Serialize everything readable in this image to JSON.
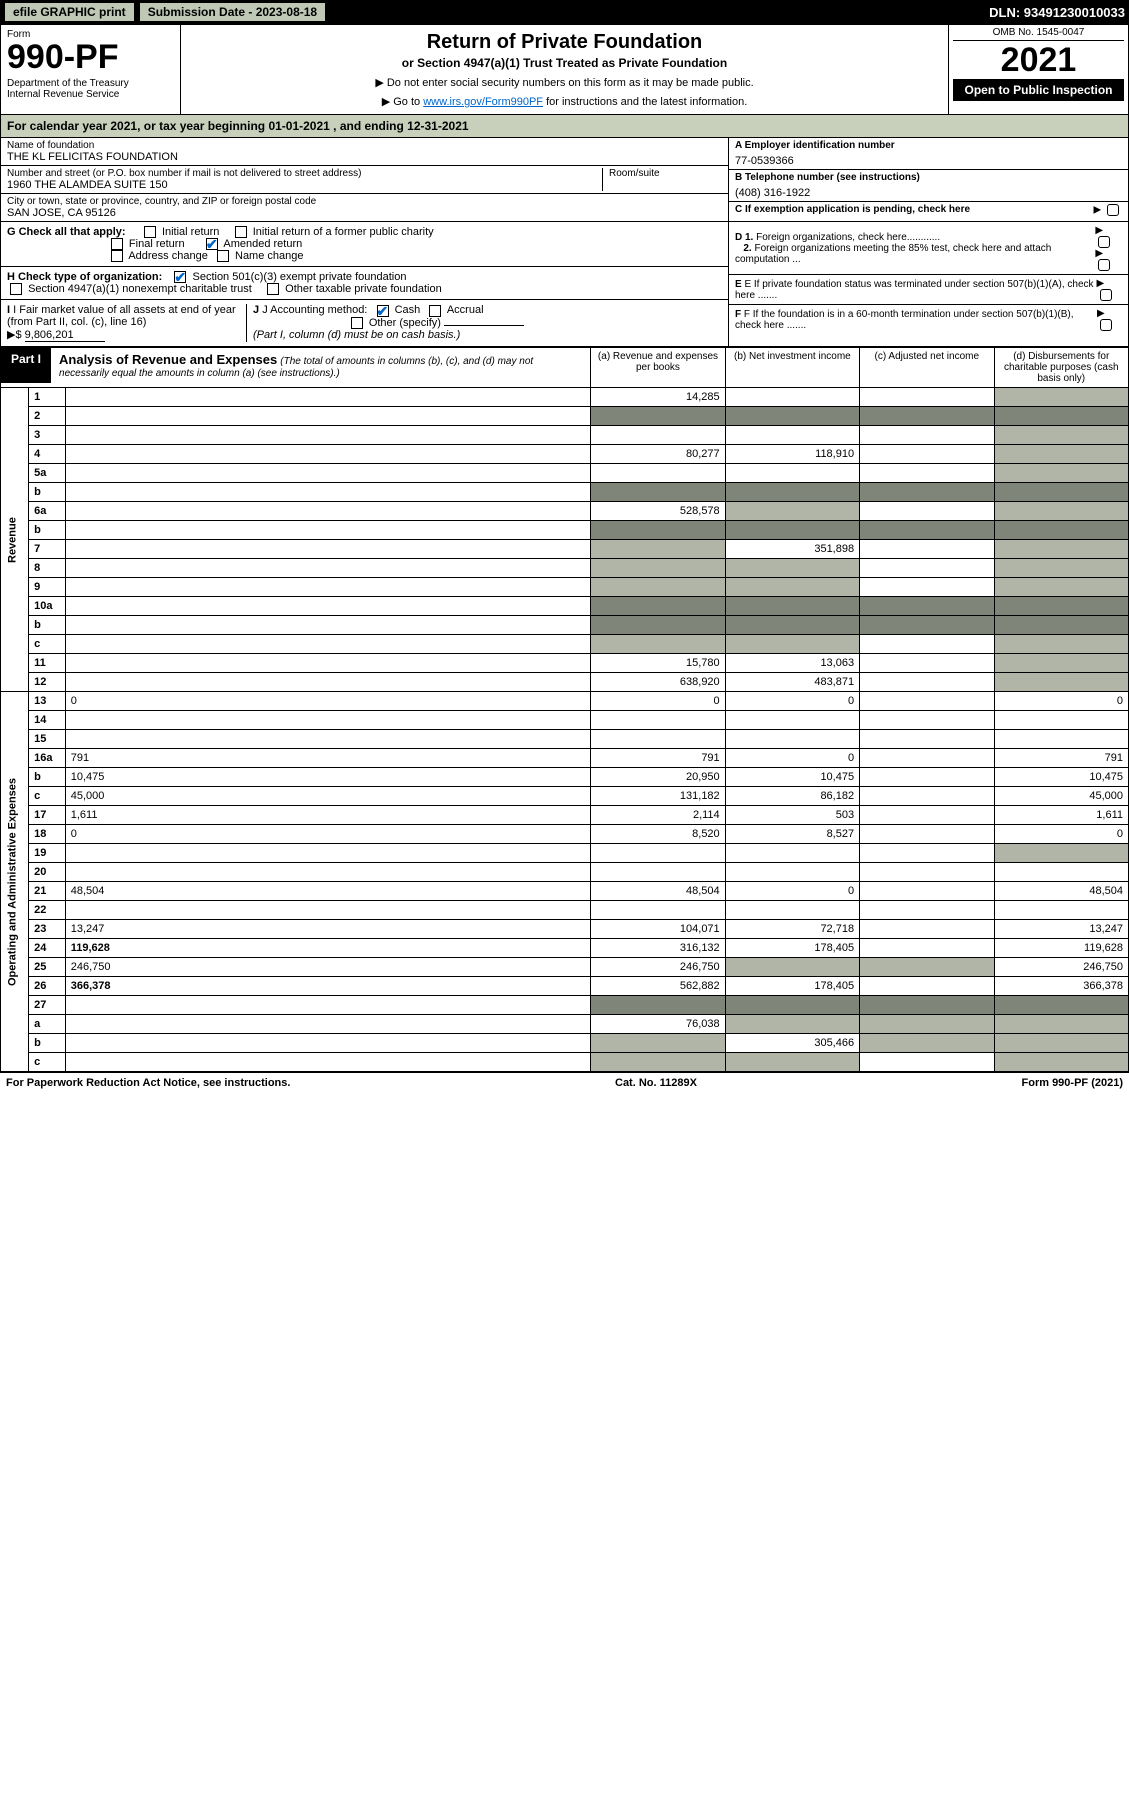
{
  "topbar": {
    "efile": "efile GRAPHIC print",
    "submission": "Submission Date - 2023-08-18",
    "dln": "DLN: 93491230010033"
  },
  "header": {
    "form_label": "Form",
    "form_num": "990-PF",
    "dept": "Department of the Treasury\nInternal Revenue Service",
    "title": "Return of Private Foundation",
    "subtitle": "or Section 4947(a)(1) Trust Treated as Private Foundation",
    "note1": "▶ Do not enter social security numbers on this form as it may be made public.",
    "note2_pre": "▶ Go to ",
    "note2_link": "www.irs.gov/Form990PF",
    "note2_post": " for instructions and the latest information.",
    "omb": "OMB No. 1545-0047",
    "year": "2021",
    "inspect": "Open to Public Inspection"
  },
  "calendar": "For calendar year 2021, or tax year beginning 01-01-2021                              , and ending 12-31-2021",
  "entity": {
    "name_label": "Name of foundation",
    "name": "THE KL FELICITAS FOUNDATION",
    "addr_label": "Number and street (or P.O. box number if mail is not delivered to street address)",
    "addr": "1960 THE ALAMDEA SUITE 150",
    "room_label": "Room/suite",
    "city_label": "City or town, state or province, country, and ZIP or foreign postal code",
    "city": "SAN JOSE, CA  95126",
    "a_label": "A Employer identification number",
    "a_val": "77-0539366",
    "b_label": "B Telephone number (see instructions)",
    "b_val": "(408) 316-1922",
    "c_label": "C If exemption application is pending, check here"
  },
  "checks": {
    "g_label": "G Check all that apply:",
    "g_opts": [
      "Initial return",
      "Initial return of a former public charity",
      "Final return",
      "Amended return",
      "Address change",
      "Name change"
    ],
    "h_label": "H Check type of organization:",
    "h_opts": [
      "Section 501(c)(3) exempt private foundation",
      "Section 4947(a)(1) nonexempt charitable trust",
      "Other taxable private foundation"
    ],
    "i_label": "I Fair market value of all assets at end of year (from Part II, col. (c), line 16)",
    "i_val": "9,806,201",
    "j_label": "J Accounting method:",
    "j_opts": [
      "Cash",
      "Accrual",
      "Other (specify)"
    ],
    "j_note": "(Part I, column (d) must be on cash basis.)",
    "d1": "D 1. Foreign organizations, check here............",
    "d2": "2. Foreign organizations meeting the 85% test, check here and attach computation ...",
    "e": "E If private foundation status was terminated under section 507(b)(1)(A), check here .......",
    "f": "F If the foundation is in a 60-month termination under section 507(b)(1)(B), check here ......."
  },
  "part1": {
    "label": "Part I",
    "title": "Analysis of Revenue and Expenses",
    "note": "(The total of amounts in columns (b), (c), and (d) may not necessarily equal the amounts in column (a) (see instructions).)",
    "cols": [
      "(a)   Revenue and expenses per books",
      "(b)   Net investment income",
      "(c)   Adjusted net income",
      "(d)   Disbursements for charitable purposes (cash basis only)"
    ]
  },
  "sections": {
    "revenue": "Revenue",
    "expenses": "Operating and Administrative Expenses"
  },
  "lines": [
    {
      "n": "1",
      "d": "",
      "a": "14,285",
      "b": "",
      "c": "",
      "dGray": true
    },
    {
      "n": "2",
      "d": "",
      "a": "",
      "b": "",
      "c": "",
      "darkA": true,
      "darkB": true,
      "darkC": true,
      "darkD": true
    },
    {
      "n": "3",
      "d": "",
      "a": "",
      "b": "",
      "c": "",
      "dGray": true
    },
    {
      "n": "4",
      "d": "",
      "a": "80,277",
      "b": "118,910",
      "c": "",
      "dGray": true
    },
    {
      "n": "5a",
      "d": "",
      "a": "",
      "b": "",
      "c": "",
      "dGray": true
    },
    {
      "n": "b",
      "d": "",
      "a": "",
      "b": "",
      "c": "",
      "darkA": true,
      "darkB": true,
      "darkC": true,
      "darkD": true
    },
    {
      "n": "6a",
      "d": "",
      "a": "528,578",
      "b": "",
      "c": "",
      "bGray": true,
      "dGray": true
    },
    {
      "n": "b",
      "d": "",
      "a": "",
      "b": "",
      "c": "",
      "darkA": true,
      "darkB": true,
      "darkC": true,
      "darkD": true
    },
    {
      "n": "7",
      "d": "",
      "a": "",
      "b": "351,898",
      "c": "",
      "aGray": true,
      "dGray": true
    },
    {
      "n": "8",
      "d": "",
      "a": "",
      "b": "",
      "c": "",
      "aGray": true,
      "bGray": true,
      "dGray": true
    },
    {
      "n": "9",
      "d": "",
      "a": "",
      "b": "",
      "c": "",
      "aGray": true,
      "bGray": true,
      "dGray": true
    },
    {
      "n": "10a",
      "d": "",
      "a": "",
      "b": "",
      "c": "",
      "darkA": true,
      "darkB": true,
      "darkC": true,
      "darkD": true
    },
    {
      "n": "b",
      "d": "",
      "a": "",
      "b": "",
      "c": "",
      "darkA": true,
      "darkB": true,
      "darkC": true,
      "darkD": true
    },
    {
      "n": "c",
      "d": "",
      "a": "",
      "b": "",
      "c": "",
      "aGray": true,
      "bGray": true,
      "dGray": true
    },
    {
      "n": "11",
      "d": "",
      "a": "15,780",
      "b": "13,063",
      "c": "",
      "dGray": true
    },
    {
      "n": "12",
      "d": "",
      "a": "638,920",
      "b": "483,871",
      "c": "",
      "bold": true,
      "dGray": true
    }
  ],
  "exp_lines": [
    {
      "n": "13",
      "d": "0",
      "a": "0",
      "b": "0",
      "c": ""
    },
    {
      "n": "14",
      "d": "",
      "a": "",
      "b": "",
      "c": ""
    },
    {
      "n": "15",
      "d": "",
      "a": "",
      "b": "",
      "c": ""
    },
    {
      "n": "16a",
      "d": "791",
      "a": "791",
      "b": "0",
      "c": ""
    },
    {
      "n": "b",
      "d": "10,475",
      "a": "20,950",
      "b": "10,475",
      "c": ""
    },
    {
      "n": "c",
      "d": "45,000",
      "a": "131,182",
      "b": "86,182",
      "c": ""
    },
    {
      "n": "17",
      "d": "1,611",
      "a": "2,114",
      "b": "503",
      "c": ""
    },
    {
      "n": "18",
      "d": "0",
      "a": "8,520",
      "b": "8,527",
      "c": ""
    },
    {
      "n": "19",
      "d": "",
      "a": "",
      "b": "",
      "c": "",
      "dGray": true
    },
    {
      "n": "20",
      "d": "",
      "a": "",
      "b": "",
      "c": ""
    },
    {
      "n": "21",
      "d": "48,504",
      "a": "48,504",
      "b": "0",
      "c": ""
    },
    {
      "n": "22",
      "d": "",
      "a": "",
      "b": "",
      "c": ""
    },
    {
      "n": "23",
      "d": "13,247",
      "a": "104,071",
      "b": "72,718",
      "c": ""
    },
    {
      "n": "24",
      "d": "119,628",
      "a": "316,132",
      "b": "178,405",
      "c": "",
      "bold": true
    },
    {
      "n": "25",
      "d": "246,750",
      "a": "246,750",
      "b": "",
      "c": "",
      "bGray": true,
      "cGray": true
    },
    {
      "n": "26",
      "d": "366,378",
      "a": "562,882",
      "b": "178,405",
      "c": "",
      "bold": true
    }
  ],
  "bottom_lines": [
    {
      "n": "27",
      "d": "",
      "a": "",
      "b": "",
      "c": "",
      "darkA": true,
      "darkB": true,
      "darkC": true,
      "darkD": true
    },
    {
      "n": "a",
      "d": "",
      "a": "76,038",
      "b": "",
      "c": "",
      "bold": true,
      "bGray": true,
      "cGray": true,
      "dGray": true
    },
    {
      "n": "b",
      "d": "",
      "a": "",
      "b": "305,466",
      "c": "",
      "bold": true,
      "aGray": true,
      "cGray": true,
      "dGray": true
    },
    {
      "n": "c",
      "d": "",
      "a": "",
      "b": "",
      "c": "",
      "bold": true,
      "aGray": true,
      "bGray": true,
      "dGray": true
    }
  ],
  "footer": {
    "left": "For Paperwork Reduction Act Notice, see instructions.",
    "mid": "Cat. No. 11289X",
    "right": "Form 990-PF (2021)"
  },
  "colors": {
    "gray": "#b0b5a8",
    "darkgray": "#7f8578",
    "header_bg": "#c8d0bc",
    "link": "#0066cc"
  }
}
